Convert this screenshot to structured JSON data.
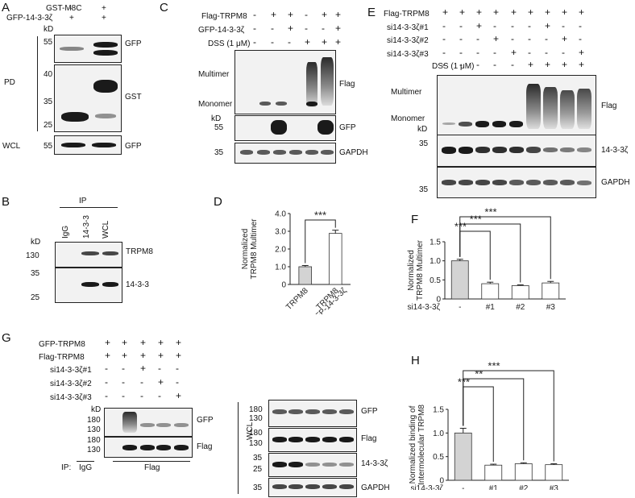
{
  "panels": {
    "A": {
      "letter": "A",
      "rows": [
        {
          "label": "GST-M8C",
          "signs": [
            "-",
            "+"
          ]
        },
        {
          "label": "GFP-14-3-3ζ",
          "signs": [
            "+",
            "+"
          ]
        }
      ],
      "kd": "kD",
      "pd": "PD",
      "wcl": "WCL",
      "markers": [
        "55",
        "40",
        "35",
        "25",
        "55"
      ],
      "blots": [
        "GFP",
        "GST",
        "GFP"
      ]
    },
    "B": {
      "letter": "B",
      "ip": "IP",
      "lanes": [
        "IgG",
        "14-3-3",
        "WCL"
      ],
      "kd": "kD",
      "markers": [
        "130",
        "35",
        "25"
      ],
      "blots": [
        "TRPM8",
        "14-3-3"
      ]
    },
    "C": {
      "letter": "C",
      "rows": [
        {
          "label": "Flag-TRPM8",
          "signs": [
            "-",
            "+",
            "+",
            "-",
            "+",
            "+"
          ]
        },
        {
          "label": "GFP-14-3-3ζ",
          "signs": [
            "-",
            "-",
            "+",
            "-",
            "-",
            "+"
          ]
        },
        {
          "label": "DSS (1 μM)",
          "signs": [
            "-",
            "-",
            "-",
            "+",
            "+",
            "+"
          ]
        }
      ],
      "multimer": "Multimer",
      "monomer": "Monomer",
      "kd": "kD",
      "markers": [
        "55",
        "35"
      ],
      "blots": [
        "Flag",
        "GFP",
        "GAPDH"
      ]
    },
    "E": {
      "letter": "E",
      "rows": [
        {
          "label": "Flag-TRPM8",
          "signs": [
            "+",
            "+",
            "+",
            "+",
            "+",
            "+",
            "+",
            "+",
            "+"
          ]
        },
        {
          "label": "si14-3-3ζ#1",
          "signs": [
            "-",
            "-",
            "+",
            "-",
            "-",
            "-",
            "+",
            "-",
            "-"
          ]
        },
        {
          "label": "si14-3-3ζ#2",
          "signs": [
            "-",
            "-",
            "-",
            "+",
            "-",
            "-",
            "-",
            "+",
            "-"
          ]
        },
        {
          "label": "si14-3-3ζ#3",
          "signs": [
            "-",
            "-",
            "-",
            "-",
            "+",
            "-",
            "-",
            "-",
            "+"
          ]
        },
        {
          "label": "DSS (1 μM)",
          "signs": [
            "-",
            "-",
            "-",
            "-",
            "-",
            "+",
            "+",
            "+",
            "+"
          ]
        }
      ],
      "multimer": "Multimer",
      "monomer": "Monomer",
      "kd": "kD",
      "markers": [
        "35",
        "35"
      ],
      "blots": [
        "Flag",
        "14-3-3ζ",
        "GAPDH"
      ]
    },
    "G": {
      "letter": "G",
      "rows": [
        {
          "label": "GFP-TRPM8",
          "signs": [
            "+",
            "+",
            "+",
            "+",
            "+"
          ]
        },
        {
          "label": "Flag-TRPM8",
          "signs": [
            "+",
            "+",
            "+",
            "+",
            "+"
          ]
        },
        {
          "label": "si14-3-3ζ#1",
          "signs": [
            "-",
            "-",
            "+",
            "-",
            "-"
          ]
        },
        {
          "label": "si14-3-3ζ#2",
          "signs": [
            "-",
            "-",
            "-",
            "+",
            "-"
          ]
        },
        {
          "label": "si14-3-3ζ#3",
          "signs": [
            "-",
            "-",
            "-",
            "-",
            "+"
          ]
        }
      ],
      "kd": "kD",
      "ip_label": "IP:",
      "ip_igg": "IgG",
      "ip_flag": "Flag",
      "wcl": "WCL",
      "markers_ip": [
        "180",
        "130",
        "180",
        "130"
      ],
      "markers_wcl": [
        "180",
        "130",
        "180",
        "130",
        "35",
        "25",
        "35"
      ],
      "blots_ip": [
        "GFP",
        "Flag"
      ],
      "blots_wcl": [
        "GFP",
        "Flag",
        "14-3-3ζ",
        "GAPDH"
      ]
    }
  },
  "chart_data": [
    {
      "panel": "D",
      "type": "bar",
      "categories": [
        "TRPM8",
        "TRPM8 +GFP-14-3-3ζ"
      ],
      "category_lines": [
        [
          "TRPM8"
        ],
        [
          "TRPM8",
          "+GFP-14-3-3ζ"
        ]
      ],
      "values": [
        1.0,
        2.88
      ],
      "errors": [
        0.07,
        0.18
      ],
      "fills": [
        "#d3d3d3",
        "#ffffff"
      ],
      "ylabel": [
        "Normalized",
        "TRPM8 Multimer"
      ],
      "ylim": [
        0,
        4.0
      ],
      "yticks": [
        "0",
        "1.0",
        "2.0",
        "3.0",
        "4.0"
      ],
      "annotations": [
        {
          "from": 0,
          "to": 1,
          "text": "***"
        }
      ]
    },
    {
      "panel": "F",
      "type": "bar",
      "xlabel": "si14-3-3ζ",
      "categories": [
        "-",
        "#1",
        "#2",
        "#3"
      ],
      "values": [
        1.0,
        0.4,
        0.35,
        0.42
      ],
      "errors": [
        0.04,
        0.04,
        0.02,
        0.04
      ],
      "fills": [
        "#d3d3d3",
        "#ffffff",
        "#ffffff",
        "#ffffff"
      ],
      "ylabel": [
        "Normalized",
        "TRPM8 Multimer"
      ],
      "ylim": [
        0,
        1.5
      ],
      "yticks": [
        "0",
        "0.5",
        "1.0",
        "1.5"
      ],
      "annotations": [
        {
          "from": 0,
          "to": 1,
          "text": "***"
        },
        {
          "from": 0,
          "to": 2,
          "text": "***"
        },
        {
          "from": 0,
          "to": 3,
          "text": "***"
        }
      ]
    },
    {
      "panel": "H",
      "type": "bar",
      "xlabel": "si14-3-3ζ",
      "categories": [
        "-",
        "#1",
        "#2",
        "#3"
      ],
      "values": [
        1.0,
        0.32,
        0.35,
        0.33
      ],
      "errors": [
        0.1,
        0.02,
        0.02,
        0.02
      ],
      "fills": [
        "#d3d3d3",
        "#ffffff",
        "#ffffff",
        "#ffffff"
      ],
      "ylabel": [
        "Normalized binding of",
        "Intermolecular TRPM8"
      ],
      "ylim": [
        0,
        1.5
      ],
      "yticks": [
        "0",
        "0.5",
        "1.0",
        "1.5"
      ],
      "annotations": [
        {
          "from": 0,
          "to": 1,
          "text": "***"
        },
        {
          "from": 0,
          "to": 2,
          "text": "**"
        },
        {
          "from": 0,
          "to": 3,
          "text": "***"
        }
      ]
    }
  ]
}
